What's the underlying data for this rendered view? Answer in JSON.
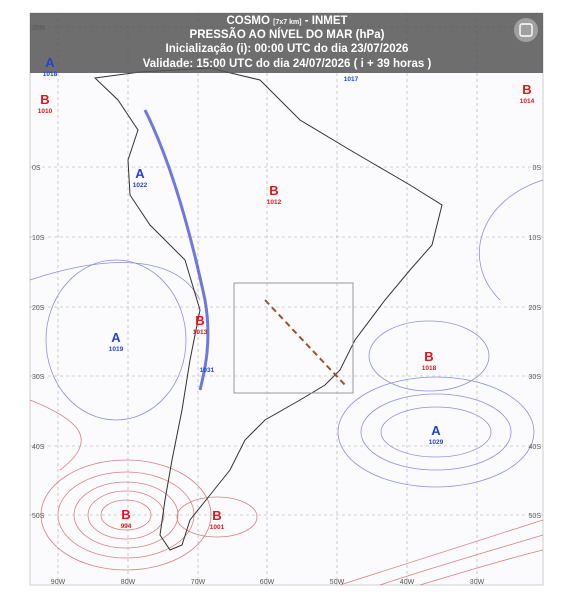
{
  "header": {
    "model": "COSMO",
    "resolution": "[7x7 km]",
    "source": "- INMET",
    "product": "PRESSÃO AO NÍVEL DO MAR (hPa)",
    "init": "Inicialização (i): 00:00 UTC do dia 23/07/2026",
    "valid": "Validade: 15:00 UTC do dia 24/07/2026 ( i + 39 horas )"
  },
  "latitude_labels": [
    "20N",
    "0S",
    "10S",
    "20S",
    "30S",
    "40S",
    "50S"
  ],
  "longitude_labels": [
    "90W",
    "80W",
    "70W",
    "60W",
    "50W",
    "40W",
    "30W"
  ],
  "pressure_centers": [
    {
      "letter": "A",
      "value": 1018,
      "color": "#2343d6"
    },
    {
      "letter": "B",
      "value": 1010,
      "color": "#d81a1a"
    },
    {
      "value": 1017,
      "color": "#2343d6"
    },
    {
      "letter": "B",
      "value": 1014,
      "color": "#d81a1a"
    },
    {
      "letter": "A",
      "value": 1022,
      "color": "#2343d6"
    },
    {
      "letter": "B",
      "value": 1012,
      "color": "#d81a1a"
    },
    {
      "letter": "B",
      "value": 1013,
      "color": "#d81a1a"
    },
    {
      "value": 1031,
      "color": "#2343d6"
    },
    {
      "letter": "A",
      "value": 1019,
      "color": "#2343d6"
    },
    {
      "letter": "B",
      "value": 1018,
      "color": "#d81a1a"
    },
    {
      "letter": "A",
      "value": 1029,
      "color": "#2343d6"
    },
    {
      "letter": "B",
      "value": 994,
      "color": "#d81a1a"
    },
    {
      "letter": "B",
      "value": 1001,
      "color": "#d81a1a"
    }
  ]
}
